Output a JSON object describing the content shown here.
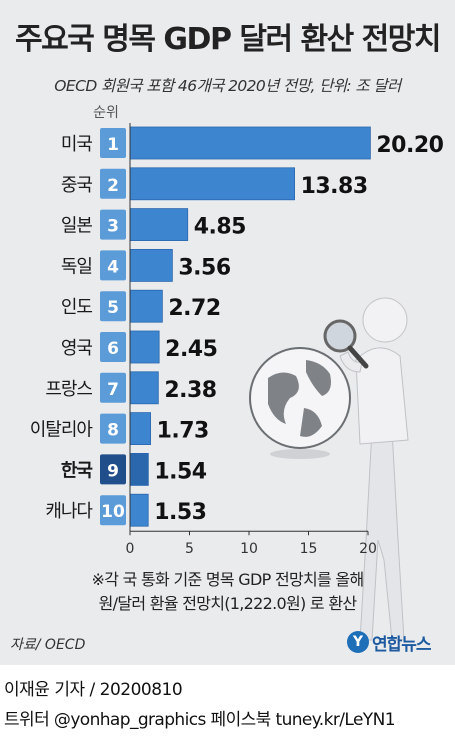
{
  "title": "주요국 명목 GDP 달러 환산 전망치",
  "subtitle": "OECD 회원국 포함 46개국 2020년 전망, 단위: 조 달러",
  "rank_header": "순위",
  "footnote": [
    "※각 국 통화 기준 명목 GDP 전망치를 올해",
    "원/달러 환율 전망치(1,222.0원) 로 환산"
  ],
  "source": "자료/ OECD",
  "logo": {
    "mark": "Y",
    "text": "연합뉴스"
  },
  "credit": {
    "line1": "이재윤 기자 / 20200810",
    "line2": "트위터 @yonhap_graphics  페이스북 tuney.kr/LeYN1"
  },
  "colors": {
    "bar": "#3d86cf",
    "bar_dark": "#2a67ad",
    "highlight": "#1f4e8a",
    "rank_badge": "#5b9bd8",
    "background": "#e9ebed"
  },
  "chart_data": {
    "type": "bar",
    "orientation": "horizontal",
    "categories": [
      "미국",
      "중국",
      "일본",
      "독일",
      "인도",
      "영국",
      "프랑스",
      "이탈리아",
      "한국",
      "캐나다"
    ],
    "ranks": [
      "1",
      "2",
      "3",
      "4",
      "5",
      "6",
      "7",
      "8",
      "9",
      "10"
    ],
    "values": [
      20.2,
      13.83,
      4.85,
      3.56,
      2.72,
      2.45,
      2.38,
      1.73,
      1.54,
      1.53
    ],
    "value_labels": [
      "20.20",
      "13.83",
      "4.85",
      "3.56",
      "2.72",
      "2.45",
      "2.38",
      "1.73",
      "1.54",
      "1.53"
    ],
    "highlight": "한국",
    "xlim": [
      0,
      20
    ],
    "xticks": [
      "0",
      "5",
      "10",
      "15",
      "20"
    ],
    "grid": false
  }
}
